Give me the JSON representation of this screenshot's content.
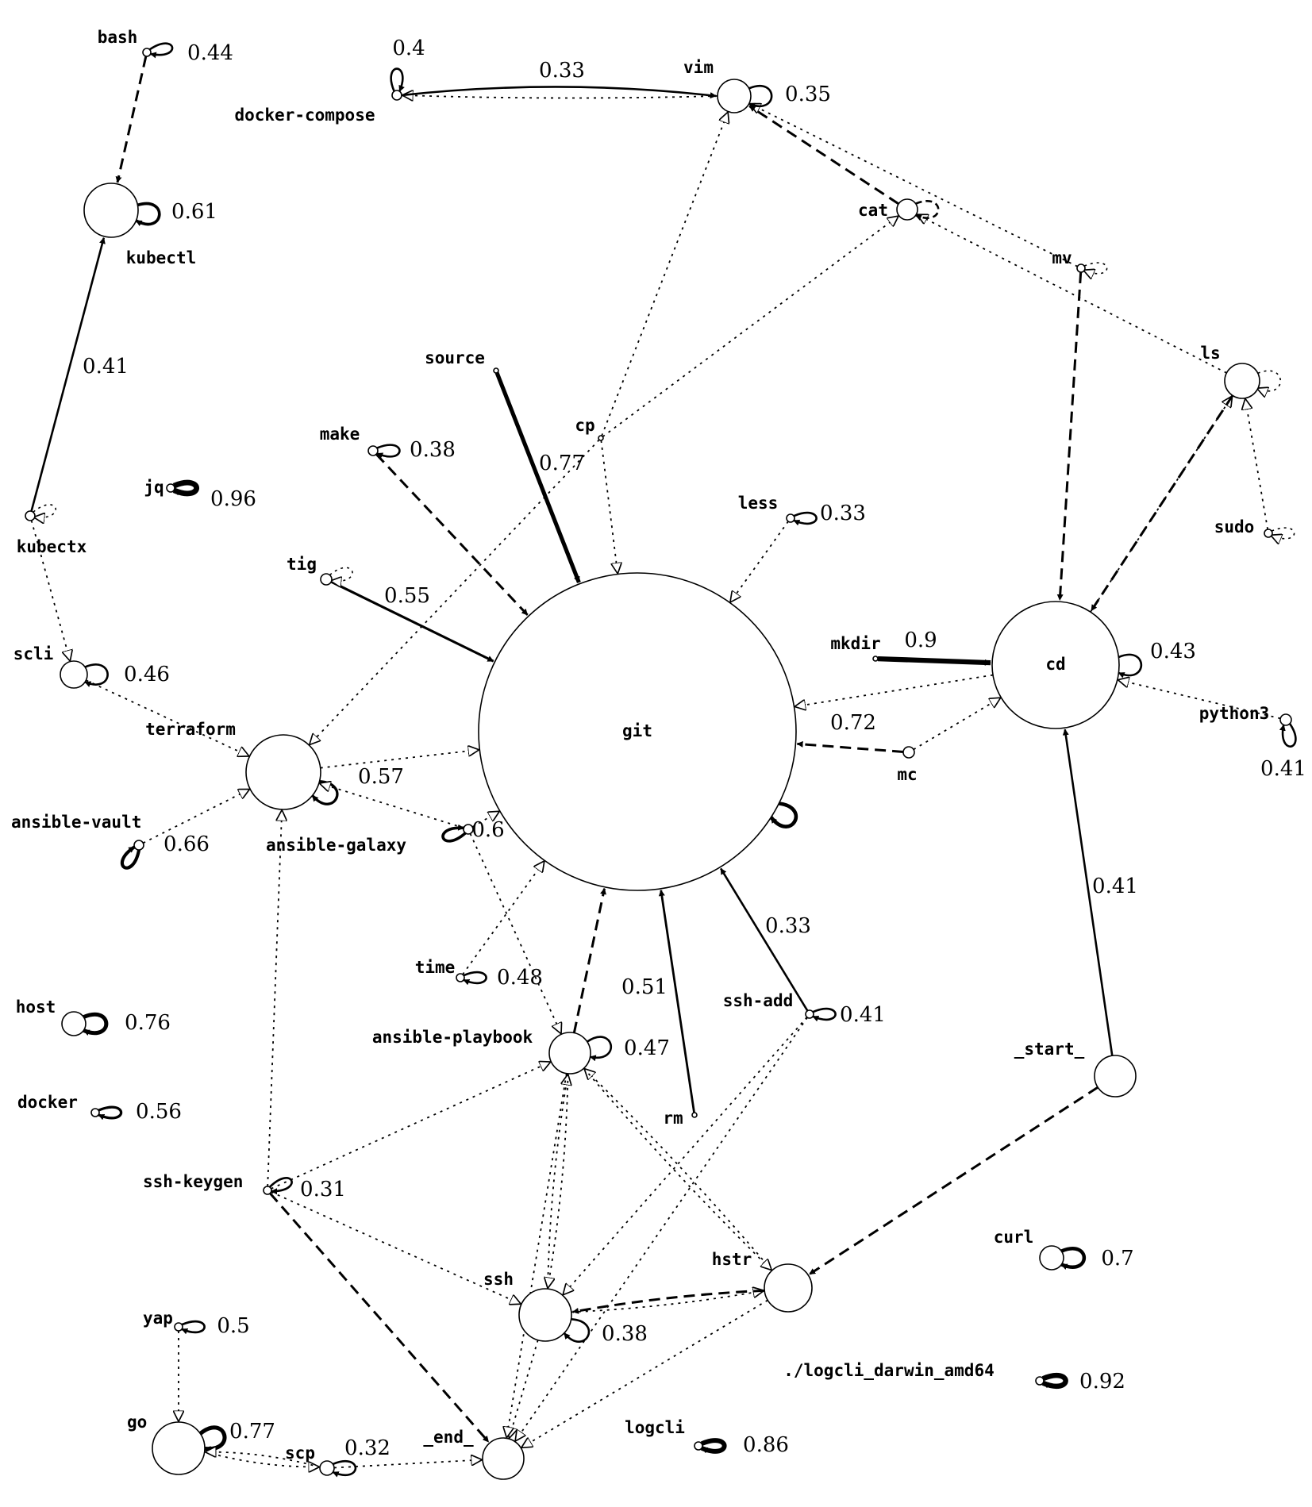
{
  "title": "",
  "nodes": [
    {
      "id": "git",
      "label": "git"
    },
    {
      "id": "cd",
      "label": "cd"
    },
    {
      "id": "bash",
      "label": "bash"
    },
    {
      "id": "kubectl",
      "label": "kubectl"
    },
    {
      "id": "kubectx",
      "label": "kubectx"
    },
    {
      "id": "scli",
      "label": "scli"
    },
    {
      "id": "terraform",
      "label": "terraform"
    },
    {
      "id": "ansible-vault",
      "label": "ansible-vault"
    },
    {
      "id": "ansible-galaxy",
      "label": "ansible-galaxy"
    },
    {
      "id": "host",
      "label": "host"
    },
    {
      "id": "docker",
      "label": "docker"
    },
    {
      "id": "ssh-keygen",
      "label": "ssh-keygen"
    },
    {
      "id": "yap",
      "label": "yap"
    },
    {
      "id": "go",
      "label": "go"
    },
    {
      "id": "scp",
      "label": "scp"
    },
    {
      "id": "_end_",
      "label": "_end_"
    },
    {
      "id": "ssh",
      "label": "ssh"
    },
    {
      "id": "hstr",
      "label": "hstr"
    },
    {
      "id": "logcli",
      "label": "logcli"
    },
    {
      "id": "./logcli_darwin_amd64",
      "label": "./logcli_darwin_amd64"
    },
    {
      "id": "curl",
      "label": "curl"
    },
    {
      "id": "_start_",
      "label": "_start_"
    },
    {
      "id": "rm",
      "label": "rm"
    },
    {
      "id": "ssh-add",
      "label": "ssh-add"
    },
    {
      "id": "ansible-playbook",
      "label": "ansible-playbook"
    },
    {
      "id": "time",
      "label": "time"
    },
    {
      "id": "mc",
      "label": "mc"
    },
    {
      "id": "mkdir",
      "label": "mkdir"
    },
    {
      "id": "python3",
      "label": "python3"
    },
    {
      "id": "sudo",
      "label": "sudo"
    },
    {
      "id": "ls",
      "label": "ls"
    },
    {
      "id": "mv",
      "label": "mv"
    },
    {
      "id": "cat",
      "label": "cat"
    },
    {
      "id": "vim",
      "label": "vim"
    },
    {
      "id": "docker-compose",
      "label": "docker-compose"
    },
    {
      "id": "source",
      "label": "source"
    },
    {
      "id": "cp",
      "label": "cp"
    },
    {
      "id": "make",
      "label": "make"
    },
    {
      "id": "jq",
      "label": "jq"
    },
    {
      "id": "tig",
      "label": "tig"
    },
    {
      "id": "less",
      "label": "less"
    }
  ],
  "edges": [
    {
      "from": "bash",
      "to": "bash",
      "label": "0.44",
      "style": "solid"
    },
    {
      "from": "bash",
      "to": "kubectl",
      "label": "",
      "style": "dashed"
    },
    {
      "from": "kubectl",
      "to": "kubectl",
      "label": "0.61",
      "style": "solid"
    },
    {
      "from": "kubectx",
      "to": "kubectl",
      "label": "0.41",
      "style": "solid"
    },
    {
      "from": "kubectx",
      "to": "kubectx",
      "label": "",
      "style": "dotted"
    },
    {
      "from": "kubectx",
      "to": "scli",
      "label": "",
      "style": "dotted"
    },
    {
      "from": "scli",
      "to": "scli",
      "label": "0.46",
      "style": "solid"
    },
    {
      "from": "scli",
      "to": "terraform",
      "label": "",
      "style": "dotted"
    },
    {
      "from": "terraform",
      "to": "terraform",
      "label": "0.57",
      "style": "solid"
    },
    {
      "from": "terraform",
      "to": "git",
      "label": "",
      "style": "dotted"
    },
    {
      "from": "ansible-vault",
      "to": "ansible-vault",
      "label": "0.66",
      "style": "solid"
    },
    {
      "from": "ansible-vault",
      "to": "terraform",
      "label": "",
      "style": "dotted"
    },
    {
      "from": "ansible-galaxy",
      "to": "ansible-galaxy",
      "label": "0.6",
      "style": "solid"
    },
    {
      "from": "ansible-galaxy",
      "to": "git",
      "label": "",
      "style": "dotted"
    },
    {
      "from": "ansible-galaxy",
      "to": "terraform",
      "label": "",
      "style": "dotted"
    },
    {
      "from": "ansible-galaxy",
      "to": "ansible-playbook",
      "label": "",
      "style": "dotted"
    },
    {
      "from": "host",
      "to": "host",
      "label": "0.76",
      "style": "solid"
    },
    {
      "from": "docker",
      "to": "docker",
      "label": "0.56",
      "style": "solid"
    },
    {
      "from": "ssh-keygen",
      "to": "ssh-keygen",
      "label": "0.31",
      "style": "solid"
    },
    {
      "from": "ssh-keygen",
      "to": "terraform",
      "label": "",
      "style": "dotted"
    },
    {
      "from": "ssh-keygen",
      "to": "ansible-playbook",
      "label": "",
      "style": "dotted"
    },
    {
      "from": "ssh-keygen",
      "to": "ssh",
      "label": "",
      "style": "dotted"
    },
    {
      "from": "ssh-keygen",
      "to": "_end_",
      "label": "",
      "style": "dashed"
    },
    {
      "from": "yap",
      "to": "yap",
      "label": "0.5",
      "style": "solid"
    },
    {
      "from": "yap",
      "to": "go",
      "label": "",
      "style": "dotted"
    },
    {
      "from": "go",
      "to": "go",
      "label": "0.77",
      "style": "solid"
    },
    {
      "from": "go",
      "to": "scp",
      "label": "",
      "style": "dotted"
    },
    {
      "from": "scp",
      "to": "go",
      "label": "",
      "style": "dotted"
    },
    {
      "from": "scp",
      "to": "scp",
      "label": "0.32",
      "style": "solid"
    },
    {
      "from": "scp",
      "to": "_end_",
      "label": "",
      "style": "dotted"
    },
    {
      "from": "ssh",
      "to": "ssh",
      "label": "0.38",
      "style": "solid"
    },
    {
      "from": "ssh",
      "to": "_end_",
      "label": "",
      "style": "dotted"
    },
    {
      "from": "ssh",
      "to": "hstr",
      "label": "",
      "style": "dotted"
    },
    {
      "from": "ssh",
      "to": "ansible-playbook",
      "label": "",
      "style": "dotted"
    },
    {
      "from": "hstr",
      "to": "ssh",
      "label": "",
      "style": "dashed"
    },
    {
      "from": "hstr",
      "to": "_end_",
      "label": "",
      "style": "dotted"
    },
    {
      "from": "hstr",
      "to": "ansible-playbook",
      "label": "",
      "style": "dotted"
    },
    {
      "from": "ansible-playbook",
      "to": "ansible-playbook",
      "label": "0.47",
      "style": "solid"
    },
    {
      "from": "ansible-playbook",
      "to": "git",
      "label": "",
      "style": "dashed"
    },
    {
      "from": "ansible-playbook",
      "to": "ssh",
      "label": "",
      "style": "dotted"
    },
    {
      "from": "ansible-playbook",
      "to": "_end_",
      "label": "",
      "style": "dotted"
    },
    {
      "from": "ansible-playbook",
      "to": "hstr",
      "label": "",
      "style": "dotted"
    },
    {
      "from": "time",
      "to": "time",
      "label": "0.48",
      "style": "solid"
    },
    {
      "from": "time",
      "to": "git",
      "label": "",
      "style": "dotted"
    },
    {
      "from": "rm",
      "to": "git",
      "label": "0.51",
      "style": "solid"
    },
    {
      "from": "ssh-add",
      "to": "git",
      "label": "0.33",
      "style": "solid"
    },
    {
      "from": "ssh-add",
      "to": "ssh-add",
      "label": "0.41",
      "style": "solid"
    },
    {
      "from": "ssh-add",
      "to": "ssh",
      "label": "",
      "style": "dotted"
    },
    {
      "from": "ssh-add",
      "to": "_end_",
      "label": "",
      "style": "dotted"
    },
    {
      "from": "_start_",
      "to": "cd",
      "label": "0.41",
      "style": "solid"
    },
    {
      "from": "_start_",
      "to": "hstr",
      "label": "",
      "style": "dashed"
    },
    {
      "from": "logcli",
      "to": "logcli",
      "label": "0.86",
      "style": "solid"
    },
    {
      "from": "./logcli_darwin_amd64",
      "to": "./logcli_darwin_amd64",
      "label": "0.92",
      "style": "solid"
    },
    {
      "from": "curl",
      "to": "curl",
      "label": "0.7",
      "style": "solid"
    },
    {
      "from": "git",
      "to": "git",
      "label": "0.72",
      "style": "solid"
    },
    {
      "from": "mc",
      "to": "git",
      "label": "",
      "style": "dashed"
    },
    {
      "from": "mc",
      "to": "cd",
      "label": "",
      "style": "dotted"
    },
    {
      "from": "cd",
      "to": "git",
      "label": "",
      "style": "dotted"
    },
    {
      "from": "cd",
      "to": "cd",
      "label": "0.43",
      "style": "solid"
    },
    {
      "from": "cd",
      "to": "ls",
      "label": "",
      "style": "dotted"
    },
    {
      "from": "mkdir",
      "to": "cd",
      "label": "0.9",
      "style": "solid"
    },
    {
      "from": "python3",
      "to": "cd",
      "label": "",
      "style": "dotted"
    },
    {
      "from": "python3",
      "to": "python3",
      "label": "0.41",
      "style": "solid"
    },
    {
      "from": "sudo",
      "to": "sudo",
      "label": "",
      "style": "dotted"
    },
    {
      "from": "sudo",
      "to": "ls",
      "label": "",
      "style": "dotted"
    },
    {
      "from": "ls",
      "to": "ls",
      "label": "",
      "style": "dotted"
    },
    {
      "from": "ls",
      "to": "cd",
      "label": "",
      "style": "dashed"
    },
    {
      "from": "ls",
      "to": "cat",
      "label": "",
      "style": "dotted"
    },
    {
      "from": "mv",
      "to": "mv",
      "label": "",
      "style": "dotted"
    },
    {
      "from": "mv",
      "to": "cd",
      "label": "",
      "style": "dashed"
    },
    {
      "from": "mv",
      "to": "vim",
      "label": "",
      "style": "dotted"
    },
    {
      "from": "cat",
      "to": "cat",
      "label": "",
      "style": "dashed"
    },
    {
      "from": "cat",
      "to": "vim",
      "label": "",
      "style": "dashed"
    },
    {
      "from": "cp",
      "to": "cat",
      "label": "",
      "style": "dotted"
    },
    {
      "from": "cp",
      "to": "git",
      "label": "",
      "style": "dotted"
    },
    {
      "from": "cp",
      "to": "vim",
      "label": "",
      "style": "dotted"
    },
    {
      "from": "cp",
      "to": "terraform",
      "label": "",
      "style": "dotted"
    },
    {
      "from": "vim",
      "to": "vim",
      "label": "0.35",
      "style": "solid"
    },
    {
      "from": "vim",
      "to": "docker-compose",
      "label": "",
      "style": "dotted"
    },
    {
      "from": "docker-compose",
      "to": "vim",
      "label": "0.33",
      "style": "solid"
    },
    {
      "from": "docker-compose",
      "to": "docker-compose",
      "label": "0.4",
      "style": "solid"
    },
    {
      "from": "source",
      "to": "git",
      "label": "0.77",
      "style": "solid"
    },
    {
      "from": "make",
      "to": "make",
      "label": "0.38",
      "style": "solid"
    },
    {
      "from": "make",
      "to": "git",
      "label": "",
      "style": "dashed"
    },
    {
      "from": "jq",
      "to": "jq",
      "label": "0.96",
      "style": "solid"
    },
    {
      "from": "tig",
      "to": "git",
      "label": "0.55",
      "style": "solid"
    },
    {
      "from": "tig",
      "to": "tig",
      "label": "",
      "style": "dotted"
    },
    {
      "from": "less",
      "to": "less",
      "label": "0.33",
      "style": "solid"
    },
    {
      "from": "less",
      "to": "git",
      "label": "",
      "style": "dotted"
    }
  ]
}
